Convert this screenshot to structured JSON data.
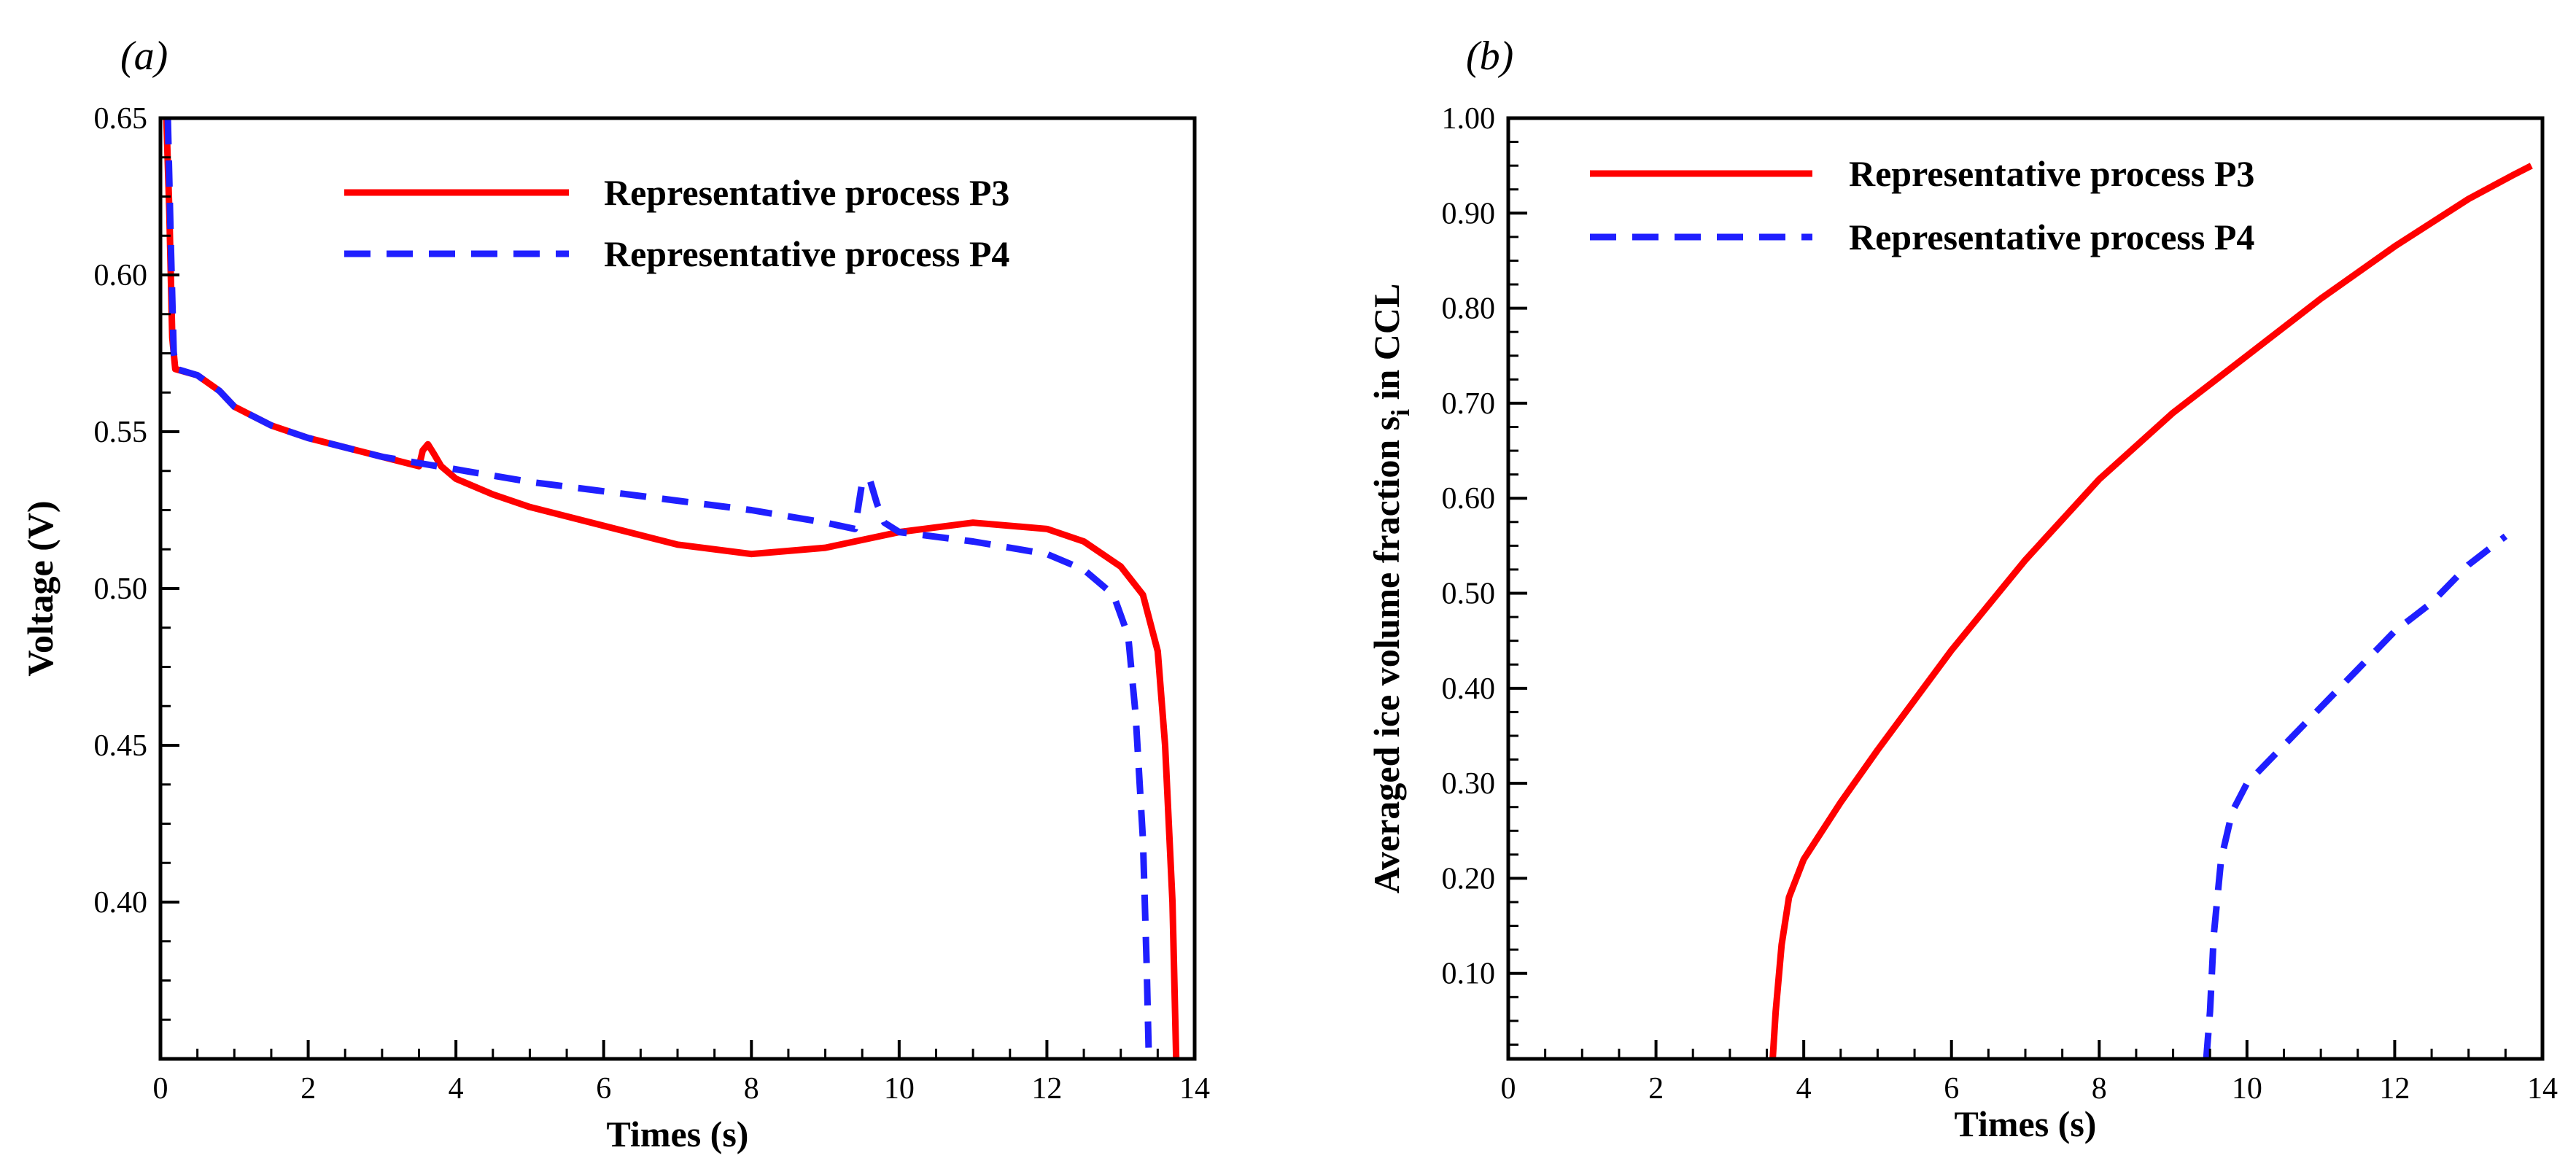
{
  "chart_data": [
    {
      "type": "line",
      "panel_label": "(a)",
      "xlabel": "Times (s)",
      "ylabel": "Voltage (V)",
      "xlim": [
        0,
        14
      ],
      "ylim": [
        0.35,
        0.65
      ],
      "xticks": [
        0,
        2,
        4,
        6,
        8,
        10,
        12,
        14
      ],
      "yticks": [
        0.4,
        0.45,
        0.5,
        0.55,
        0.6,
        0.65
      ],
      "xtick_labels": [
        "0",
        "2",
        "4",
        "6",
        "8",
        "10",
        "12",
        "14"
      ],
      "ytick_labels": [
        "0.40",
        "0.45",
        "0.50",
        "0.55",
        "0.60",
        "0.65"
      ],
      "grid": false,
      "legend_position": "top-right",
      "series": [
        {
          "name": "Representative process P3",
          "color": "#ff0000",
          "dash": "solid",
          "points": [
            [
              0.08,
              0.65
            ],
            [
              0.12,
              0.62
            ],
            [
              0.16,
              0.58
            ],
            [
              0.2,
              0.57
            ],
            [
              0.5,
              0.568
            ],
            [
              0.8,
              0.563
            ],
            [
              1.0,
              0.558
            ],
            [
              1.5,
              0.552
            ],
            [
              2.0,
              0.548
            ],
            [
              2.5,
              0.545
            ],
            [
              3.0,
              0.542
            ],
            [
              3.5,
              0.539
            ],
            [
              3.55,
              0.544
            ],
            [
              3.62,
              0.546
            ],
            [
              3.7,
              0.543
            ],
            [
              3.8,
              0.539
            ],
            [
              4.0,
              0.535
            ],
            [
              4.5,
              0.53
            ],
            [
              5.0,
              0.526
            ],
            [
              6.0,
              0.52
            ],
            [
              7.0,
              0.514
            ],
            [
              8.0,
              0.511
            ],
            [
              9.0,
              0.513
            ],
            [
              10.0,
              0.518
            ],
            [
              11.0,
              0.521
            ],
            [
              12.0,
              0.519
            ],
            [
              12.5,
              0.515
            ],
            [
              13.0,
              0.507
            ],
            [
              13.3,
              0.498
            ],
            [
              13.5,
              0.48
            ],
            [
              13.6,
              0.45
            ],
            [
              13.7,
              0.4
            ],
            [
              13.75,
              0.35
            ]
          ]
        },
        {
          "name": "Representative process P4",
          "color": "#1f1fff",
          "dash": "dashed",
          "points": [
            [
              0.1,
              0.65
            ],
            [
              0.14,
              0.61
            ],
            [
              0.18,
              0.575
            ],
            [
              0.22,
              0.57
            ],
            [
              0.5,
              0.568
            ],
            [
              0.8,
              0.563
            ],
            [
              1.0,
              0.558
            ],
            [
              1.5,
              0.552
            ],
            [
              2.0,
              0.548
            ],
            [
              2.5,
              0.545
            ],
            [
              3.0,
              0.542
            ],
            [
              3.5,
              0.54
            ],
            [
              4.0,
              0.538
            ],
            [
              5.0,
              0.534
            ],
            [
              6.0,
              0.531
            ],
            [
              7.0,
              0.528
            ],
            [
              8.0,
              0.525
            ],
            [
              9.0,
              0.521
            ],
            [
              9.4,
              0.519
            ],
            [
              9.5,
              0.534
            ],
            [
              9.6,
              0.535
            ],
            [
              9.7,
              0.527
            ],
            [
              9.8,
              0.521
            ],
            [
              10.0,
              0.518
            ],
            [
              11.0,
              0.515
            ],
            [
              12.0,
              0.511
            ],
            [
              12.5,
              0.506
            ],
            [
              12.9,
              0.498
            ],
            [
              13.1,
              0.485
            ],
            [
              13.2,
              0.46
            ],
            [
              13.3,
              0.42
            ],
            [
              13.35,
              0.38
            ],
            [
              13.38,
              0.35
            ]
          ]
        }
      ]
    },
    {
      "type": "line",
      "panel_label": "(b)",
      "xlabel": "Times (s)",
      "ylabel_parts": [
        "Averaged ice volume fraction s",
        "i",
        " in CCL"
      ],
      "xlim": [
        0,
        14
      ],
      "ylim": [
        0.01,
        1.0
      ],
      "xticks": [
        0,
        2,
        4,
        6,
        8,
        10,
        12,
        14
      ],
      "yticks": [
        0.1,
        0.2,
        0.3,
        0.4,
        0.5,
        0.6,
        0.7,
        0.8,
        0.9,
        1.0
      ],
      "xtick_labels": [
        "0",
        "2",
        "4",
        "6",
        "8",
        "10",
        "12",
        "14"
      ],
      "ytick_labels": [
        "0.10",
        "0.20",
        "0.30",
        "0.40",
        "0.50",
        "0.60",
        "0.70",
        "0.80",
        "0.90",
        "1.00"
      ],
      "grid": false,
      "legend_position": "top-left",
      "series": [
        {
          "name": "Representative process P3",
          "color": "#ff0000",
          "dash": "solid",
          "points": [
            [
              3.58,
              0.01
            ],
            [
              3.62,
              0.06
            ],
            [
              3.7,
              0.13
            ],
            [
              3.8,
              0.18
            ],
            [
              4.0,
              0.22
            ],
            [
              4.5,
              0.28
            ],
            [
              5.0,
              0.335
            ],
            [
              6.0,
              0.44
            ],
            [
              7.0,
              0.535
            ],
            [
              8.0,
              0.62
            ],
            [
              9.0,
              0.69
            ],
            [
              10.0,
              0.75
            ],
            [
              11.0,
              0.81
            ],
            [
              12.0,
              0.865
            ],
            [
              13.0,
              0.915
            ],
            [
              13.6,
              0.94
            ],
            [
              13.85,
              0.95
            ]
          ]
        },
        {
          "name": "Representative process P4",
          "color": "#1f1fff",
          "dash": "dashed",
          "points": [
            [
              9.45,
              0.01
            ],
            [
              9.5,
              0.06
            ],
            [
              9.55,
              0.14
            ],
            [
              9.65,
              0.22
            ],
            [
              9.8,
              0.27
            ],
            [
              10.0,
              0.3
            ],
            [
              10.5,
              0.34
            ],
            [
              11.0,
              0.38
            ],
            [
              11.5,
              0.42
            ],
            [
              12.0,
              0.46
            ],
            [
              12.5,
              0.49
            ],
            [
              13.0,
              0.53
            ],
            [
              13.5,
              0.56
            ]
          ]
        }
      ]
    }
  ]
}
